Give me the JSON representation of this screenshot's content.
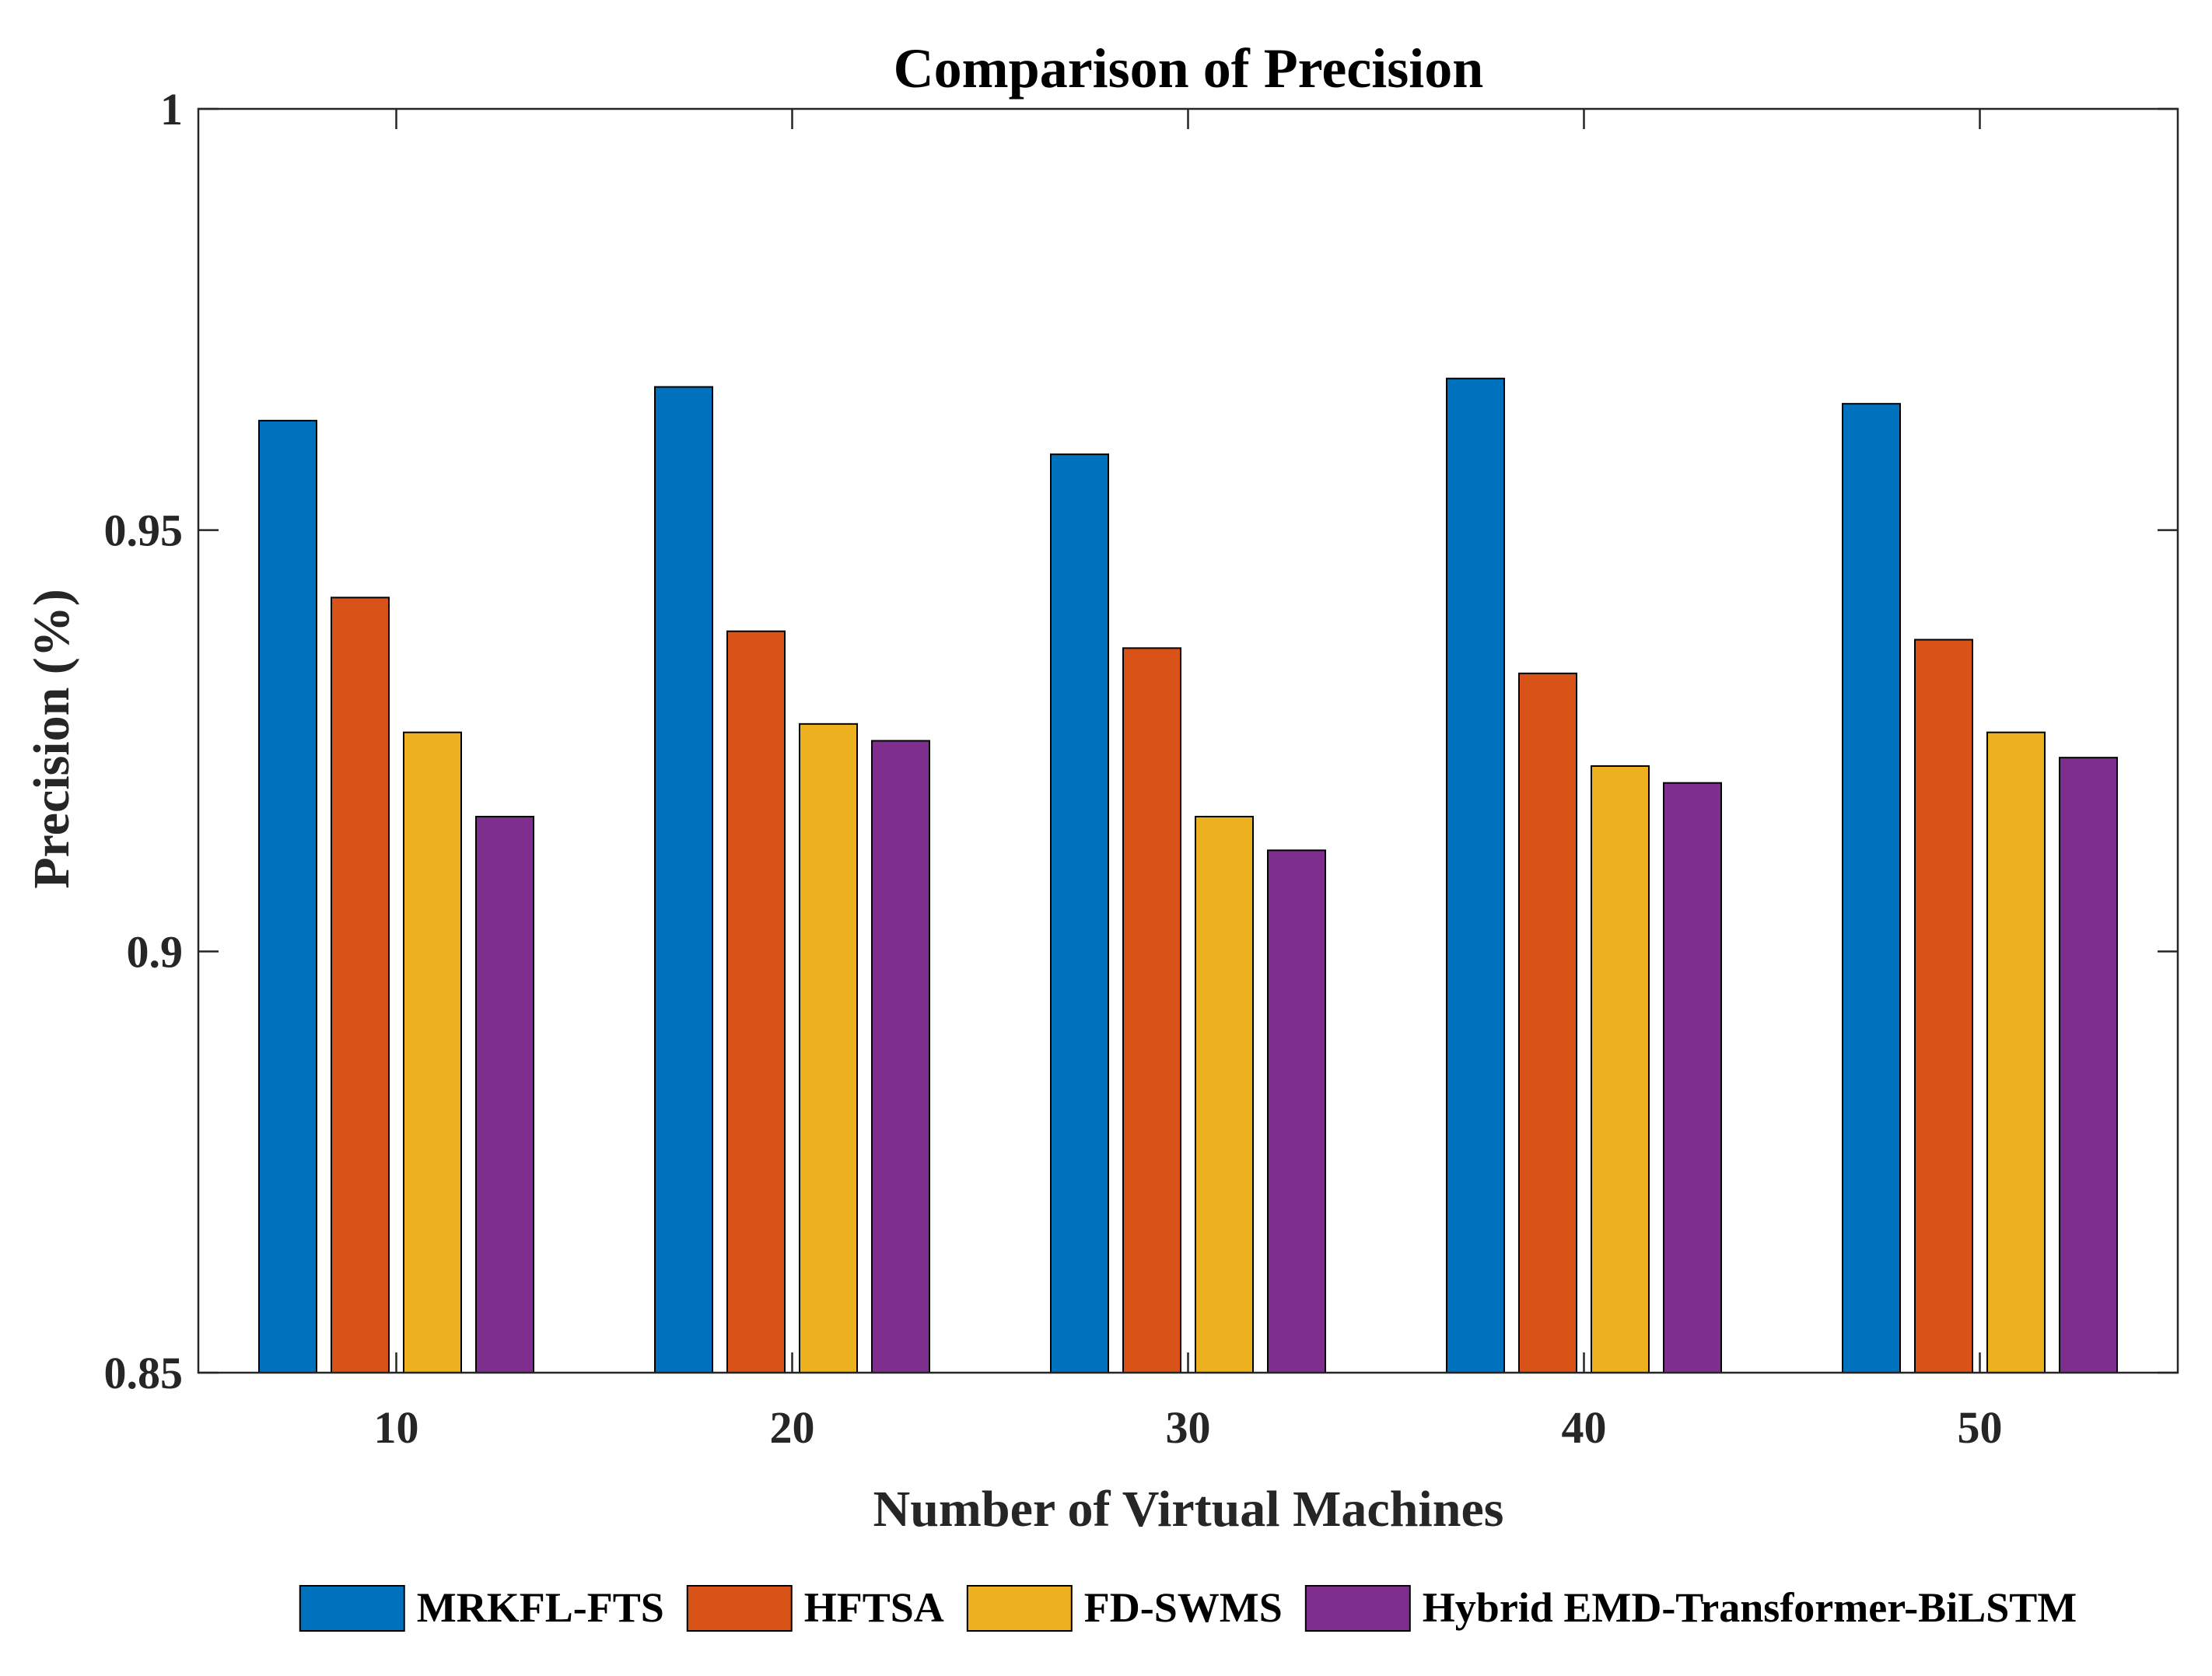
{
  "chart_data": {
    "type": "bar",
    "title": "Comparison of Precision",
    "xlabel": "Number of Virtual Machines",
    "ylabel": "Precision (%)",
    "categories": [
      "10",
      "20",
      "30",
      "40",
      "50"
    ],
    "ylim": [
      0.85,
      1
    ],
    "yticks": [
      0.85,
      0.9,
      0.95,
      1
    ],
    "ytick_labels": [
      "0.85",
      "0.9",
      "0.95",
      "1"
    ],
    "legend_position": "bottom",
    "grid": false,
    "series": [
      {
        "name": "MRKFL-FTS",
        "color": "#0072BD",
        "values": [
          0.963,
          0.967,
          0.959,
          0.968,
          0.965
        ]
      },
      {
        "name": "HFTSA",
        "color": "#D95319",
        "values": [
          0.942,
          0.938,
          0.936,
          0.933,
          0.937
        ]
      },
      {
        "name": "FD-SWMS",
        "color": "#EDB120",
        "values": [
          0.926,
          0.927,
          0.916,
          0.922,
          0.926
        ]
      },
      {
        "name": "Hybrid EMD-Transformer-BiLSTM",
        "color": "#7E2F8E",
        "values": [
          0.916,
          0.925,
          0.912,
          0.92,
          0.923
        ]
      }
    ]
  }
}
